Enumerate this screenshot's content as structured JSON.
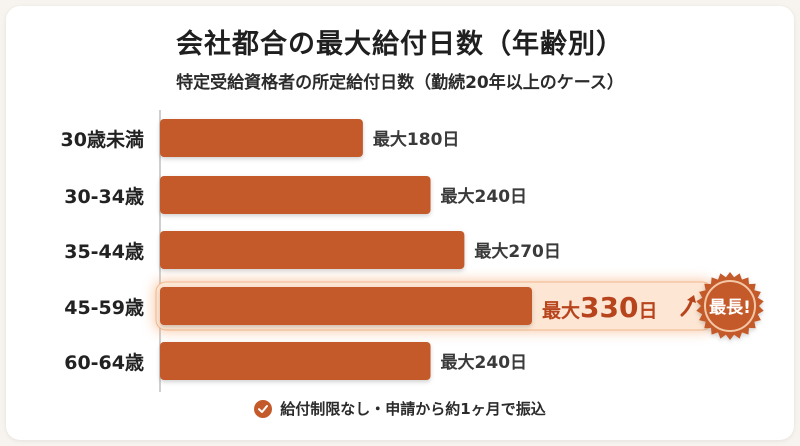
{
  "title": "会社都合の最大給付日数（年齢別）",
  "subtitle": "特定受給資格者の所定給付日数（勤続20年以上のケース）",
  "badge": "最長!",
  "footer_note": "給付制限なし・申請から約1ヶ月で振込",
  "icons": {
    "footer": "check-icon",
    "highlight": "arrow-up-right-icon",
    "badge": "starburst-badge"
  },
  "colors": {
    "bar": "#c45a2a",
    "highlight_text": "#b7441c",
    "text": "#2b2b2b",
    "highlight_bg": "#fde6d3"
  },
  "chart_data": {
    "type": "bar",
    "orientation": "horizontal",
    "categories": [
      "30歳未満",
      "30-34歳",
      "35-44歳",
      "45-59歳",
      "60-64歳"
    ],
    "values": [
      180,
      240,
      270,
      330,
      240
    ],
    "labels": [
      "最大180日",
      "最大240日",
      "最大270日",
      "最大330日",
      "最大240日"
    ],
    "highlight_index": 3,
    "xlim": [
      0,
      330
    ],
    "grid": false
  }
}
